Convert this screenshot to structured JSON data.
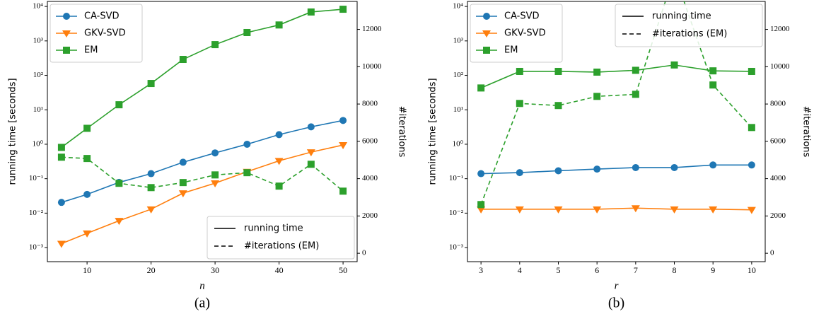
{
  "chart_data": [
    {
      "type": "line",
      "caption": "(a)",
      "xlabel": "n",
      "ylabel": "running time [seconds]",
      "y2label": "#iterations",
      "x": [
        6,
        10,
        15,
        20,
        25,
        30,
        35,
        40,
        45,
        50
      ],
      "xlim": [
        3.8,
        52.2
      ],
      "xticks": [
        10,
        20,
        30,
        40,
        50
      ],
      "yscale": "log",
      "ylim": [
        0.00039,
        14000
      ],
      "yticks": [
        {
          "value": 0.001,
          "label": "10⁻³"
        },
        {
          "value": 0.01,
          "label": "10⁻²"
        },
        {
          "value": 0.1,
          "label": "10⁻¹"
        },
        {
          "value": 1,
          "label": "10⁰"
        },
        {
          "value": 10,
          "label": "10¹"
        },
        {
          "value": 100,
          "label": "10²"
        },
        {
          "value": 1000,
          "label": "10³"
        },
        {
          "value": 10000,
          "label": "10⁴"
        }
      ],
      "y2lim": [
        -450,
        13500
      ],
      "y2ticks": [
        0,
        2000,
        4000,
        6000,
        8000,
        10000,
        12000
      ],
      "legend": "upper left",
      "style_legend": {
        "labels": [
          "running time",
          "#iterations (EM)"
        ],
        "loc": "lower right"
      },
      "series": [
        {
          "name": "CA-SVD",
          "color": "#1f77b4",
          "marker": "circle",
          "linestyle": "solid",
          "values": [
            0.0205,
            0.035,
            0.078,
            0.14,
            0.3,
            0.56,
            1.0,
            1.9,
            3.2,
            4.9
          ]
        },
        {
          "name": "GKV-SVD",
          "color": "#ff7f0e",
          "marker": "triangle-down",
          "linestyle": "solid",
          "values": [
            0.0013,
            0.0026,
            0.006,
            0.013,
            0.038,
            0.074,
            0.16,
            0.33,
            0.59,
            0.95
          ]
        },
        {
          "name": "EM",
          "color": "#2ca02c",
          "marker": "square",
          "linestyle": "solid",
          "values": [
            0.81,
            2.9,
            14,
            58,
            290,
            780,
            1750,
            2900,
            6900,
            8300
          ]
        },
        {
          "color": "#2ca02c",
          "marker": "square",
          "linestyle": "dashed",
          "axis": "y2",
          "values": [
            5150,
            5080,
            3750,
            3520,
            3790,
            4200,
            4320,
            3600,
            4770,
            3330
          ]
        }
      ]
    },
    {
      "type": "line",
      "caption": "(b)",
      "xlabel": "r",
      "ylabel": "running time [seconds]",
      "y2label": "#iterations",
      "x": [
        3,
        4,
        5,
        6,
        7,
        8,
        9,
        10
      ],
      "xlim": [
        2.65,
        10.35
      ],
      "xticks": [
        3,
        4,
        5,
        6,
        7,
        8,
        9,
        10
      ],
      "yscale": "log",
      "ylim": [
        0.00039,
        14000
      ],
      "yticks": [
        {
          "value": 0.001,
          "label": "10⁻³"
        },
        {
          "value": 0.01,
          "label": "10⁻²"
        },
        {
          "value": 0.1,
          "label": "10⁻¹"
        },
        {
          "value": 1,
          "label": "10⁰"
        },
        {
          "value": 10,
          "label": "10¹"
        },
        {
          "value": 100,
          "label": "10²"
        },
        {
          "value": 1000,
          "label": "10³"
        },
        {
          "value": 10000,
          "label": "10⁴"
        }
      ],
      "y2lim": [
        -450,
        13500
      ],
      "y2ticks": [
        0,
        2000,
        4000,
        6000,
        8000,
        10000,
        12000
      ],
      "legend": "upper left",
      "style_legend": {
        "labels": [
          "running time",
          "#iterations (EM)"
        ],
        "loc": "upper right"
      },
      "series": [
        {
          "name": "CA-SVD",
          "color": "#1f77b4",
          "marker": "circle",
          "linestyle": "solid",
          "values": [
            0.14,
            0.15,
            0.17,
            0.19,
            0.21,
            0.21,
            0.25,
            0.25
          ]
        },
        {
          "name": "GKV-SVD",
          "color": "#ff7f0e",
          "marker": "triangle-down",
          "linestyle": "solid",
          "values": [
            0.013,
            0.013,
            0.013,
            0.013,
            0.014,
            0.013,
            0.013,
            0.0125
          ]
        },
        {
          "name": "EM",
          "color": "#2ca02c",
          "marker": "square",
          "linestyle": "solid",
          "values": [
            43,
            130,
            130,
            124,
            140,
            200,
            135,
            130
          ]
        },
        {
          "color": "#2ca02c",
          "marker": "square",
          "linestyle": "dashed",
          "axis": "y2",
          "values": [
            2610,
            8030,
            7920,
            8410,
            8520,
            15000,
            9020,
            6740
          ]
        }
      ]
    }
  ]
}
